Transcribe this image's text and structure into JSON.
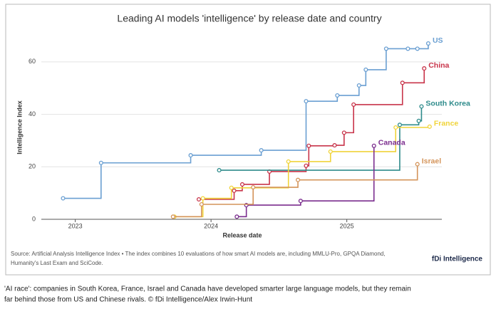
{
  "chart_data": {
    "type": "step",
    "title": "Leading AI models 'intelligence' by release date and country",
    "x_label": "Release date",
    "y_label": "Intelligence Index",
    "xlim": [
      2022.75,
      2025.7
    ],
    "xticks": [
      2023,
      2024,
      2025
    ],
    "ylim": [
      0,
      70
    ],
    "yticks": [
      0,
      20,
      40,
      60
    ],
    "grid": true,
    "series": [
      {
        "name": "US",
        "color": "#6a9fd2",
        "x": [
          2022.91,
          2023.19,
          2023.85,
          2024.37,
          2024.7,
          2024.93,
          2025.09,
          2025.14,
          2025.29,
          2025.45,
          2025.52,
          2025.6
        ],
        "values": [
          8,
          21.5,
          24.4,
          26.3,
          45,
          47.2,
          51,
          57,
          65,
          65,
          65,
          67
        ]
      },
      {
        "name": "China",
        "color": "#c8344a",
        "x": [
          2023.91,
          2024.17,
          2024.23,
          2024.43,
          2024.7,
          2024.72,
          2024.91,
          2024.98,
          2025.05,
          2025.41,
          2025.57
        ],
        "values": [
          7.6,
          10.9,
          13.3,
          18.2,
          20.4,
          28,
          28.2,
          33,
          43.7,
          52,
          57.5
        ]
      },
      {
        "name": "South Korea",
        "color": "#2e8b8b",
        "x": [
          2024.06,
          2025.39,
          2025.53,
          2025.55
        ],
        "values": [
          18.7,
          36,
          37.5,
          43
        ]
      },
      {
        "name": "France",
        "color": "#f0d43a",
        "x": [
          2023.73,
          2023.94,
          2024.15,
          2024.57,
          2024.88,
          2025.36,
          2025.61
        ],
        "values": [
          1,
          8,
          12,
          22,
          25.8,
          35,
          35.3
        ]
      },
      {
        "name": "Canada",
        "color": "#7b2d8e",
        "x": [
          2024.19,
          2024.26,
          2024.66,
          2025.2
        ],
        "values": [
          1,
          5.4,
          7,
          28
        ]
      },
      {
        "name": "Israel",
        "color": "#d4945a",
        "x": [
          2023.72,
          2023.93,
          2024.31,
          2024.64,
          2025.52
        ],
        "values": [
          1,
          5.7,
          12.2,
          15,
          21
        ]
      }
    ],
    "source": [
      "Source: Artificial Analysis Intelligence Index • The index combines 10 evaluations of how smart AI models are, including MMLU-Pro, GPQA Diamond,",
      "Humanity's Last Exam and SciCode."
    ],
    "logo": "fDi Intelligence",
    "caption": [
      "'AI race': companies in South Korea, France, Israel and Canada have developed smarter large language models, but they remain",
      "far behind those from US and Chinese rivals. © fDi Intelligence/Alex Irwin-Hunt"
    ]
  }
}
